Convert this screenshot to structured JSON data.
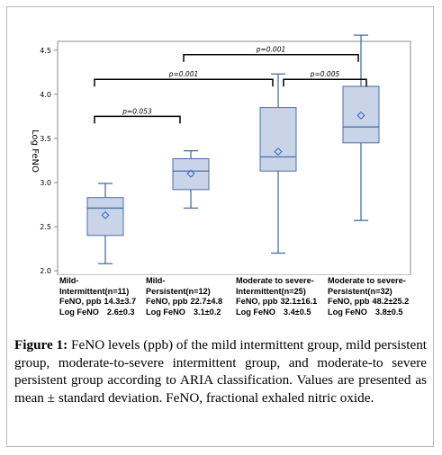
{
  "chart_data": {
    "type": "box",
    "ylabel": "Log FeNO",
    "ylim": [
      1.95,
      4.6
    ],
    "yticks": [
      "2.0",
      "2.5",
      "3.0",
      "3.5",
      "4.0",
      "4.5"
    ],
    "ytick_values": [
      2.0,
      2.5,
      3.0,
      3.5,
      4.0,
      4.5
    ],
    "categories": [
      {
        "name": "Mild-Intermittent(n=11)",
        "name_lines": [
          "Mild-",
          "Intermittent(n=11)"
        ],
        "feno_label": "FeNO, ppb",
        "feno_value": "14.3±3.7",
        "log_label": "Log FeNO",
        "log_value": "2.6±0.3"
      },
      {
        "name": "Mild-Persistent(n=12)",
        "name_lines": [
          "Mild-",
          "Persistent(n=12)"
        ],
        "feno_label": "FeNO, ppb",
        "feno_value": "22.7±4.8",
        "log_label": "Log FeNO",
        "log_value": "3.1±0.2"
      },
      {
        "name": "Moderate to severe-Intermittent(n=25)",
        "name_lines": [
          "Moderate to severe-",
          "Intermittent(n=25)"
        ],
        "feno_label": "FeNO, ppb",
        "feno_value": "32.1±16.1",
        "log_label": "Log FeNO",
        "log_value": "3.4±0.5"
      },
      {
        "name": "Moderate to severe-Persistent(n=32)",
        "name_lines": [
          "Moderate to severe-",
          "Persistent(n=32)"
        ],
        "feno_label": "FeNO, ppb",
        "feno_value": "48.2±25.2",
        "log_label": "Log FeNO",
        "log_value": "3.8±0.5"
      }
    ],
    "boxes": [
      {
        "min": 2.08,
        "q1": 2.4,
        "median": 2.71,
        "q3": 2.83,
        "max": 2.99,
        "mean": 2.63
      },
      {
        "min": 2.71,
        "q1": 2.92,
        "median": 3.13,
        "q3": 3.27,
        "max": 3.36,
        "mean": 3.1
      },
      {
        "min": 2.2,
        "q1": 3.13,
        "median": 3.29,
        "q3": 3.85,
        "max": 4.23,
        "mean": 3.35
      },
      {
        "min": 2.57,
        "q1": 3.45,
        "median": 3.63,
        "q3": 4.09,
        "max": 4.67,
        "mean": 3.76
      }
    ],
    "comparisons": [
      {
        "from": 0,
        "to": 1,
        "label": "p=0.053",
        "y": 3.75
      },
      {
        "from": 0,
        "to": 2,
        "label": "p=0.001",
        "y": 4.17
      },
      {
        "from": 2,
        "to": 3,
        "label": "p=0.005",
        "y": 4.17
      },
      {
        "from": 1,
        "to": 3,
        "label": "p=0.001",
        "y": 4.45
      }
    ],
    "grid": false,
    "box_fill": "#c9d4e9",
    "box_stroke": "#4a6fa5",
    "median_color": "#4a6fa5",
    "mean_marker_color": "#3d6cc0",
    "axis_color": "#888888"
  },
  "caption": {
    "label": "Figure 1:",
    "text": "FeNO levels (ppb) of the mild intermittent group, mild persistent group, moderate-to-severe intermittent group, and moderate-to severe persistent group according to ARIA classification. Values are presented as mean ± standard deviation. FeNO, fractional exhaled nitric oxide."
  }
}
